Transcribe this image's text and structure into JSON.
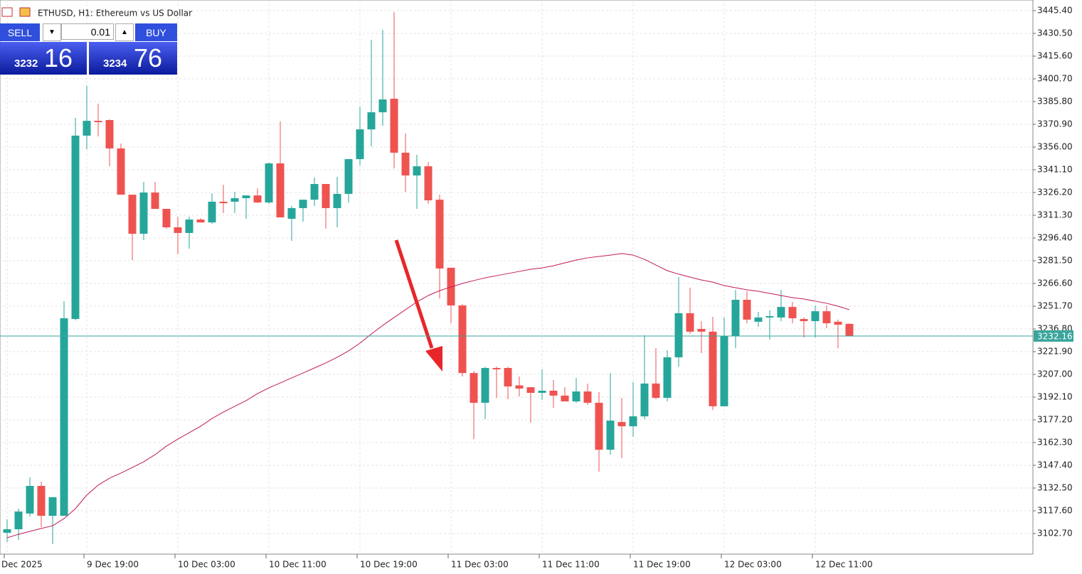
{
  "header": {
    "title": "ETHUSD, H1:  Ethereum vs US Dollar"
  },
  "trade_panel": {
    "sell_label": "SELL",
    "volume": "0.01",
    "buy_label": "BUY",
    "bid_main": "3232",
    "bid_big": "16",
    "ask_main": "3234",
    "ask_big": "76"
  },
  "chart_data": {
    "type": "candlestick",
    "categories": [
      "Dec 2025",
      null,
      null,
      null,
      null,
      null,
      null,
      "9 Dec 19:00",
      null,
      null,
      null,
      null,
      null,
      null,
      null,
      "10 Dec 03:00",
      null,
      null,
      null,
      null,
      null,
      null,
      null,
      "10 Dec 11:00",
      null,
      null,
      null,
      null,
      null,
      null,
      null,
      "10 Dec 19:00",
      null,
      null,
      null,
      null,
      null,
      null,
      null,
      "11 Dec 03:00",
      null,
      null,
      null,
      null,
      null,
      null,
      null,
      "11 Dec 11:00",
      null,
      null,
      null,
      null,
      null,
      null,
      null,
      "11 Dec 19:00",
      null,
      null,
      null,
      null,
      null,
      null,
      null,
      "12 Dec 03:00",
      null,
      null,
      null,
      null,
      null,
      null,
      null,
      "12 Dec 11:00",
      null,
      null,
      null
    ],
    "open": [
      3103.2,
      3105.5,
      3115.8,
      3133.9,
      3114.3,
      3114.3,
      3243.3,
      3363.5,
      3373.2,
      3373.7,
      3355.1,
      3324.8,
      3299.2,
      3326.2,
      3315.5,
      3303.4,
      3299.7,
      3308.5,
      3306.6,
      3320.2,
      3320.2,
      3322.5,
      3324.3,
      3319.7,
      3345.3,
      3309.0,
      3316.0,
      3321.5,
      3331.8,
      3316.0,
      3325.3,
      3348.1,
      3367.6,
      3378.8,
      3387.7,
      3352.3,
      3337.4,
      3343.4,
      3321.5,
      3276.9,
      3252.2,
      3207.9,
      3188.4,
      3211.2,
      3211.2,
      3199.8,
      3198.6,
      3194.9,
      3196.3,
      3193.1,
      3189.3,
      3195.8,
      3188.4,
      3157.6,
      3175.8,
      3173.0,
      3179.5,
      3201.0,
      3191.6,
      3218.2,
      3247.1,
      3236.8,
      3235.0,
      3186.1,
      3232.1,
      3255.9,
      3241.5,
      3244.3,
      3244.3,
      3251.2,
      3243.3,
      3241.9,
      3248.4,
      3241.5,
      3240.1
    ],
    "high": [
      3112.0,
      3119.0,
      3139.5,
      3136.7,
      3126.5,
      3255.0,
      3375.1,
      3396.1,
      3384.4,
      3374.2,
      3358.3,
      3324.8,
      3333.2,
      3333.2,
      3315.5,
      3310.4,
      3310.4,
      3309.4,
      3325.7,
      3331.3,
      3326.7,
      3324.3,
      3329.0,
      3345.8,
      3372.8,
      3317.4,
      3321.5,
      3336.0,
      3331.8,
      3336.4,
      3348.1,
      3382.5,
      3426.3,
      3432.8,
      3444.5,
      3364.9,
      3350.9,
      3346.2,
      3324.8,
      3276.9,
      3253.1,
      3209.3,
      3212.1,
      3212.1,
      3212.1,
      3205.6,
      3198.6,
      3210.3,
      3203.3,
      3198.6,
      3204.7,
      3200.9,
      3195.4,
      3207.9,
      3191.6,
      3201.9,
      3232.6,
      3224.2,
      3222.8,
      3270.8,
      3263.8,
      3241.9,
      3244.7,
      3244.3,
      3262.4,
      3261.5,
      3248.0,
      3248.9,
      3262.4,
      3254.5,
      3244.3,
      3252.2,
      3252.2,
      3242.9,
      3240.5
    ],
    "low": [
      3097.1,
      3098.5,
      3113.9,
      3106.9,
      3095.7,
      3114.3,
      3242.4,
      3354.6,
      3363.0,
      3343.4,
      3324.8,
      3282.0,
      3295.0,
      3315.5,
      3302.5,
      3285.7,
      3289.4,
      3306.6,
      3305.7,
      3312.7,
      3312.7,
      3309.0,
      3319.2,
      3318.8,
      3309.9,
      3294.5,
      3307.1,
      3317.4,
      3302.5,
      3303.4,
      3319.7,
      3343.9,
      3356.5,
      3370.0,
      3342.0,
      3326.7,
      3315.5,
      3318.8,
      3256.8,
      3240.5,
      3205.6,
      3164.6,
      3177.7,
      3191.6,
      3190.7,
      3192.6,
      3175.4,
      3190.3,
      3185.1,
      3189.3,
      3188.4,
      3187.0,
      3143.2,
      3154.4,
      3152.1,
      3166.0,
      3177.7,
      3190.7,
      3189.3,
      3212.1,
      3233.6,
      3221.0,
      3183.7,
      3186.1,
      3224.2,
      3240.5,
      3238.2,
      3229.8,
      3241.9,
      3240.5,
      3231.2,
      3231.2,
      3237.3,
      3224.2,
      3232.16
    ],
    "close": [
      3105.5,
      3117.1,
      3133.9,
      3114.3,
      3126.5,
      3243.8,
      3363.5,
      3373.2,
      3372.3,
      3355.1,
      3324.8,
      3299.2,
      3326.2,
      3315.5,
      3303.4,
      3299.7,
      3308.5,
      3306.6,
      3320.2,
      3319.2,
      3322.5,
      3324.3,
      3319.7,
      3345.3,
      3309.9,
      3316.0,
      3321.5,
      3331.8,
      3316.0,
      3325.3,
      3348.1,
      3367.6,
      3378.8,
      3387.2,
      3352.3,
      3337.4,
      3343.4,
      3321.1,
      3276.4,
      3252.2,
      3207.9,
      3188.4,
      3211.2,
      3210.3,
      3199.1,
      3197.7,
      3194.9,
      3196.3,
      3193.1,
      3189.3,
      3195.8,
      3188.4,
      3157.6,
      3176.7,
      3173.0,
      3179.5,
      3201.0,
      3191.6,
      3218.2,
      3247.1,
      3235.0,
      3235.0,
      3186.1,
      3232.1,
      3255.9,
      3242.9,
      3244.3,
      3245.2,
      3251.2,
      3243.8,
      3241.9,
      3248.4,
      3240.5,
      3239.6,
      3232.16
    ],
    "up_color": "#26a69a",
    "down_color": "#ef5350",
    "ma": {
      "color": "#c2185b",
      "values": [
        3099.9,
        3102.2,
        3104.1,
        3106.0,
        3107.8,
        3112.5,
        3119.0,
        3127.9,
        3134.4,
        3139.0,
        3142.3,
        3146.0,
        3149.7,
        3154.4,
        3160.0,
        3164.6,
        3168.8,
        3173.0,
        3178.1,
        3182.3,
        3186.1,
        3189.8,
        3194.4,
        3198.2,
        3201.4,
        3204.7,
        3207.9,
        3211.2,
        3214.5,
        3218.2,
        3222.4,
        3227.5,
        3233.5,
        3239.1,
        3244.3,
        3249.4,
        3254.5,
        3258.7,
        3261.9,
        3264.3,
        3266.6,
        3268.5,
        3270.3,
        3271.7,
        3273.1,
        3274.5,
        3275.9,
        3276.8,
        3278.2,
        3280.1,
        3281.9,
        3283.4,
        3284.3,
        3285.2,
        3286.2,
        3285.2,
        3282.4,
        3278.7,
        3275.0,
        3272.7,
        3270.8,
        3268.9,
        3267.5,
        3265.2,
        3263.8,
        3262.4,
        3261.5,
        3260.1,
        3258.7,
        3257.3,
        3256.4,
        3255.0,
        3253.6,
        3251.7,
        3249.4
      ]
    },
    "current_price": 3232.16,
    "current_price_color": "#3aa59c",
    "ylim": [
      3089.2,
      3452.4
    ],
    "yticks": [
      {
        "value": 3445.4,
        "label": "3445.40"
      },
      {
        "value": 3430.5,
        "label": "3430.50"
      },
      {
        "value": 3415.6,
        "label": "3415.60"
      },
      {
        "value": 3400.7,
        "label": "3400.70"
      },
      {
        "value": 3385.8,
        "label": "3385.80"
      },
      {
        "value": 3370.9,
        "label": "3370.90"
      },
      {
        "value": 3356,
        "label": "3356.00"
      },
      {
        "value": 3341.1,
        "label": "3341.10"
      },
      {
        "value": 3326.2,
        "label": "3326.20"
      },
      {
        "value": 3311.3,
        "label": "3311.30"
      },
      {
        "value": 3296.4,
        "label": "3296.40"
      },
      {
        "value": 3281.5,
        "label": "3281.50"
      },
      {
        "value": 3266.6,
        "label": "3266.60"
      },
      {
        "value": 3251.7,
        "label": "3251.70"
      },
      {
        "value": 3236.8,
        "label": "3236.80"
      },
      {
        "value": 3221.9,
        "label": "3221.90"
      },
      {
        "value": 3207,
        "label": "3207.00"
      },
      {
        "value": 3192.1,
        "label": "3192.10"
      },
      {
        "value": 3177.2,
        "label": "3177.20"
      },
      {
        "value": 3162.3,
        "label": "3162.30"
      },
      {
        "value": 3147.4,
        "label": "3147.40"
      },
      {
        "value": 3132.5,
        "label": "3132.50"
      },
      {
        "value": 3117.6,
        "label": "3117.60"
      },
      {
        "value": 3102.7,
        "label": "3102.70"
      }
    ],
    "grid": true
  }
}
